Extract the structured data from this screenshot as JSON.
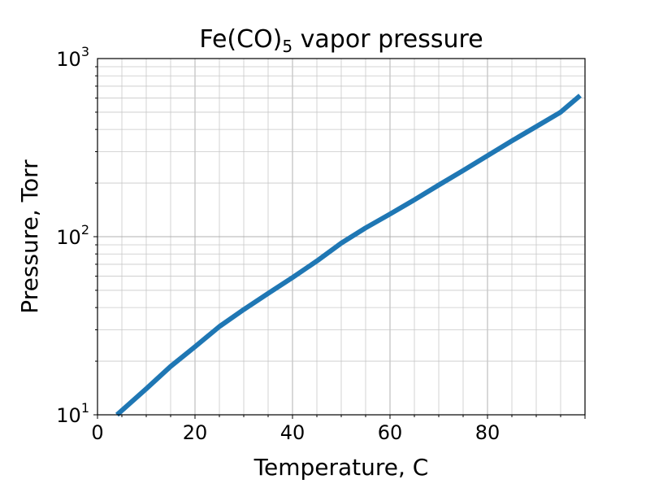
{
  "chart_data": {
    "type": "line",
    "title_main": "Fe(CO)",
    "title_subscript": "5",
    "title_rest": " vapor pressure",
    "xlabel": "Temperature, C",
    "ylabel": "Pressure, Torr",
    "xlim": [
      0,
      100
    ],
    "ylim": [
      10,
      1000
    ],
    "yscale": "log",
    "grid": true,
    "grid_minor": true,
    "line_color": "#1f77b4",
    "x_ticks": [
      {
        "value": 0,
        "label": "0"
      },
      {
        "value": 20,
        "label": "20"
      },
      {
        "value": 40,
        "label": "40"
      },
      {
        "value": 60,
        "label": "60"
      },
      {
        "value": 80,
        "label": "80"
      }
    ],
    "y_ticks": [
      {
        "value": 10,
        "base": "10",
        "exp": "1"
      },
      {
        "value": 100,
        "base": "10",
        "exp": "2"
      },
      {
        "value": 1000,
        "base": "10",
        "exp": "3"
      }
    ],
    "series": [
      {
        "x": [
          4,
          10,
          15,
          20,
          25,
          30,
          35,
          40,
          45,
          50,
          55,
          60,
          65,
          70,
          75,
          80,
          85,
          90,
          95,
          99
        ],
        "y": [
          10,
          14.0,
          18.7,
          24.1,
          31.3,
          39.0,
          48.0,
          59.0,
          73.0,
          92.0,
          112.0,
          134.0,
          161.0,
          195.0,
          235.0,
          285.0,
          345.0,
          415.0,
          500.0,
          620.0
        ]
      }
    ]
  }
}
